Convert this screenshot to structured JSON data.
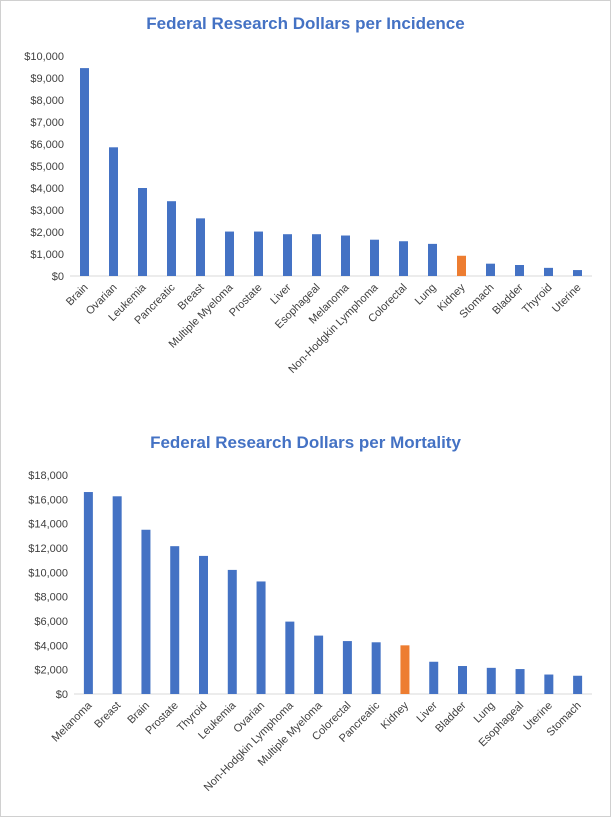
{
  "chart_data": [
    {
      "type": "bar",
      "title": "Federal Research Dollars per Incidence",
      "xlabel": "",
      "ylabel": "",
      "ylim": [
        0,
        10000
      ],
      "yticks": [
        "$0",
        "$1,000",
        "$2,000",
        "$3,000",
        "$4,000",
        "$5,000",
        "$6,000",
        "$7,000",
        "$8,000",
        "$9,000",
        "$10,000"
      ],
      "grid": false,
      "categories": [
        "Brain",
        "Ovarian",
        "Leukemia",
        "Pancreatic",
        "Breast",
        "Multiple Myeloma",
        "Prostate",
        "Liver",
        "Esophageal",
        "Melanoma",
        "Non-Hodgkin Lymphoma",
        "Colorectal",
        "Lung",
        "Kidney",
        "Stomach",
        "Bladder",
        "Thyroid",
        "Uterine"
      ],
      "values": [
        9450,
        5850,
        4000,
        3400,
        2620,
        2020,
        2020,
        1900,
        1900,
        1840,
        1650,
        1580,
        1460,
        920,
        560,
        500,
        370,
        270
      ],
      "colors": [
        "#4472c4",
        "#4472c4",
        "#4472c4",
        "#4472c4",
        "#4472c4",
        "#4472c4",
        "#4472c4",
        "#4472c4",
        "#4472c4",
        "#4472c4",
        "#4472c4",
        "#4472c4",
        "#4472c4",
        "#ed7d31",
        "#4472c4",
        "#4472c4",
        "#4472c4",
        "#4472c4"
      ]
    },
    {
      "type": "bar",
      "title": "Federal Research Dollars per Mortality",
      "xlabel": "",
      "ylabel": "",
      "ylim": [
        0,
        18000
      ],
      "yticks": [
        "$0",
        "$2,000",
        "$4,000",
        "$6,000",
        "$8,000",
        "$10,000",
        "$12,000",
        "$14,000",
        "$16,000",
        "$18,000"
      ],
      "grid": false,
      "categories": [
        "Melanoma",
        "Breast",
        "Brain",
        "Prostate",
        "Thyroid",
        "Leukemia",
        "Ovarian",
        "Non-Hodgkin Lymphoma",
        "Multiple Myeloma",
        "Colorectal",
        "Pancreatic",
        "Kidney",
        "Liver",
        "Bladder",
        "Lung",
        "Esophageal",
        "Uterine",
        "Stomach"
      ],
      "values": [
        16600,
        16250,
        13500,
        12150,
        11350,
        10200,
        9250,
        5950,
        4800,
        4350,
        4250,
        4000,
        2650,
        2300,
        2150,
        2050,
        1600,
        1500
      ],
      "colors": [
        "#4472c4",
        "#4472c4",
        "#4472c4",
        "#4472c4",
        "#4472c4",
        "#4472c4",
        "#4472c4",
        "#4472c4",
        "#4472c4",
        "#4472c4",
        "#4472c4",
        "#ed7d31",
        "#4472c4",
        "#4472c4",
        "#4472c4",
        "#4472c4",
        "#4472c4",
        "#4472c4"
      ]
    }
  ]
}
